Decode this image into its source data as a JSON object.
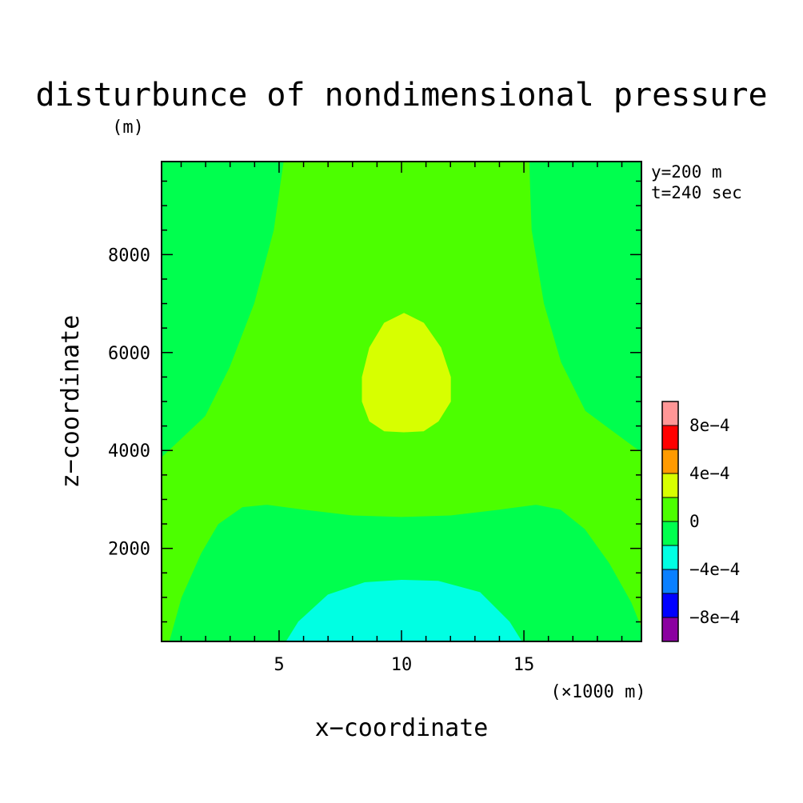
{
  "chart_data": {
    "type": "heatmap",
    "title": "disturbunce of nondimensional pressure",
    "xlabel": "x−coordinate",
    "ylabel": "z−coordinate",
    "x_unit": "(×1000 m)",
    "y_unit": "(m)",
    "annotations": [
      "y=200 m",
      "t=240 sec"
    ],
    "xlim": [
      0.2,
      19.8
    ],
    "ylim": [
      100,
      9900
    ],
    "x_ticks": [
      5,
      10,
      15
    ],
    "x_tick_labels": [
      "5",
      "10",
      "15"
    ],
    "y_ticks": [
      2000,
      4000,
      6000,
      8000
    ],
    "y_tick_labels": [
      "2000",
      "4000",
      "6000",
      "8000"
    ],
    "x_minor_step": 1,
    "y_minor_step": 500,
    "contour_regions": [
      {
        "fill": "#00ff4e",
        "level": "0",
        "polygon": [
          [
            0.2,
            100
          ],
          [
            19.8,
            100
          ],
          [
            19.8,
            9900
          ],
          [
            0.2,
            9900
          ]
        ]
      },
      {
        "fill": "#4cff00",
        "level": "0 to 4e-4",
        "polygon": [
          [
            5.2,
            9900
          ],
          [
            15.2,
            9900
          ],
          [
            15.3,
            8500
          ],
          [
            15.8,
            7000
          ],
          [
            16.5,
            5800
          ],
          [
            17.5,
            4800
          ],
          [
            19.8,
            3950
          ],
          [
            19.8,
            400
          ],
          [
            19.4,
            900
          ],
          [
            18.5,
            1700
          ],
          [
            17.5,
            2400
          ],
          [
            16.5,
            2800
          ],
          [
            15.5,
            2900
          ],
          [
            14.0,
            2800
          ],
          [
            12.0,
            2680
          ],
          [
            10.0,
            2650
          ],
          [
            8.0,
            2680
          ],
          [
            6.0,
            2800
          ],
          [
            4.5,
            2900
          ],
          [
            3.5,
            2850
          ],
          [
            2.5,
            2500
          ],
          [
            1.8,
            1900
          ],
          [
            1.0,
            1000
          ],
          [
            0.5,
            100
          ],
          [
            0.2,
            100
          ],
          [
            0.2,
            3850
          ],
          [
            2.0,
            4700
          ],
          [
            3.0,
            5700
          ],
          [
            4.0,
            7000
          ],
          [
            4.8,
            8500
          ]
        ]
      },
      {
        "fill": "#00ff4e",
        "level": "-4e-4 to 0",
        "polygon": [
          [
            5.3,
            100
          ],
          [
            5.8,
            500
          ],
          [
            7.0,
            1050
          ],
          [
            8.5,
            1300
          ],
          [
            10.0,
            1350
          ],
          [
            11.5,
            1330
          ],
          [
            13.2,
            1100
          ],
          [
            14.4,
            500
          ],
          [
            14.9,
            100
          ]
        ]
      },
      {
        "fill": "#00ffe3",
        "level": "-4e-4 to 0",
        "polygon": [
          [
            5.3,
            100
          ],
          [
            5.8,
            500
          ],
          [
            7.0,
            1050
          ],
          [
            8.5,
            1300
          ],
          [
            10.0,
            1350
          ],
          [
            11.5,
            1330
          ],
          [
            13.2,
            1100
          ],
          [
            14.4,
            500
          ],
          [
            14.9,
            100
          ]
        ]
      },
      {
        "fill": "#d7ff00",
        "level": "4e-4",
        "polygon": [
          [
            10.1,
            6800
          ],
          [
            10.9,
            6600
          ],
          [
            11.6,
            6100
          ],
          [
            12.0,
            5500
          ],
          [
            12.0,
            5000
          ],
          [
            11.5,
            4600
          ],
          [
            10.9,
            4400
          ],
          [
            10.1,
            4380
          ],
          [
            9.3,
            4400
          ],
          [
            8.7,
            4600
          ],
          [
            8.4,
            5000
          ],
          [
            8.4,
            5500
          ],
          [
            8.7,
            6100
          ],
          [
            9.3,
            6600
          ]
        ]
      }
    ],
    "colorbar": {
      "levels": [
        {
          "color": "#8b00a0"
        },
        {
          "color": "#0000ff"
        },
        {
          "color": "#0a80ff"
        },
        {
          "color": "#00ffe3"
        },
        {
          "color": "#00ff4e"
        },
        {
          "color": "#4cff00"
        },
        {
          "color": "#d7ff00"
        },
        {
          "color": "#ff9a00"
        },
        {
          "color": "#ff0000"
        },
        {
          "color": "#ff9696"
        }
      ],
      "tick_labels": [
        "−8e−4",
        "−4e−4",
        "0",
        "4e−4",
        "8e−4"
      ]
    }
  }
}
